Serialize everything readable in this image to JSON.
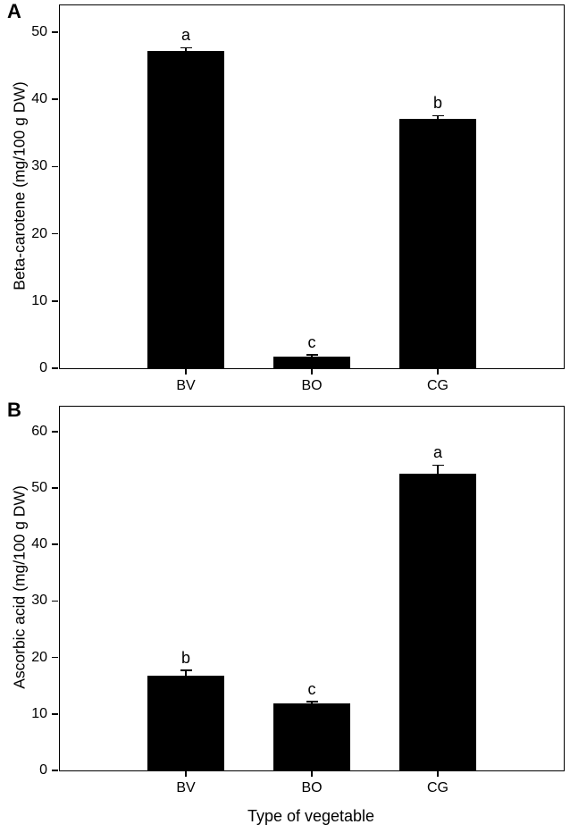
{
  "figure": {
    "background_color": "#ffffff",
    "bar_color": "#000000",
    "axis_color": "#000000",
    "x_axis_title": "Type of vegetable"
  },
  "chart_data": [
    {
      "type": "bar",
      "panel_label": "A",
      "ylabel": "Beta-carotene (mg/100 g DW)",
      "xlabel": "",
      "categories": [
        "BV",
        "BO",
        "CG"
      ],
      "values": [
        47.2,
        1.7,
        37.1
      ],
      "errors": [
        0.4,
        0.15,
        0.35
      ],
      "sig_letters": [
        "a",
        "c",
        "b"
      ],
      "yticks": [
        0,
        10,
        20,
        30,
        40,
        50
      ],
      "ylim": [
        0,
        54
      ],
      "grid": "off",
      "legend": "none"
    },
    {
      "type": "bar",
      "panel_label": "B",
      "ylabel": "Ascorbic acid (mg/100 g DW)",
      "xlabel": "Type of vegetable",
      "categories": [
        "BV",
        "BO",
        "CG"
      ],
      "values": [
        16.8,
        11.8,
        52.6
      ],
      "errors": [
        0.8,
        0.3,
        1.3
      ],
      "sig_letters": [
        "b",
        "c",
        "a"
      ],
      "yticks": [
        0,
        10,
        20,
        30,
        40,
        50,
        60
      ],
      "ylim": [
        0,
        64.4
      ],
      "grid": "off",
      "legend": "none"
    }
  ]
}
